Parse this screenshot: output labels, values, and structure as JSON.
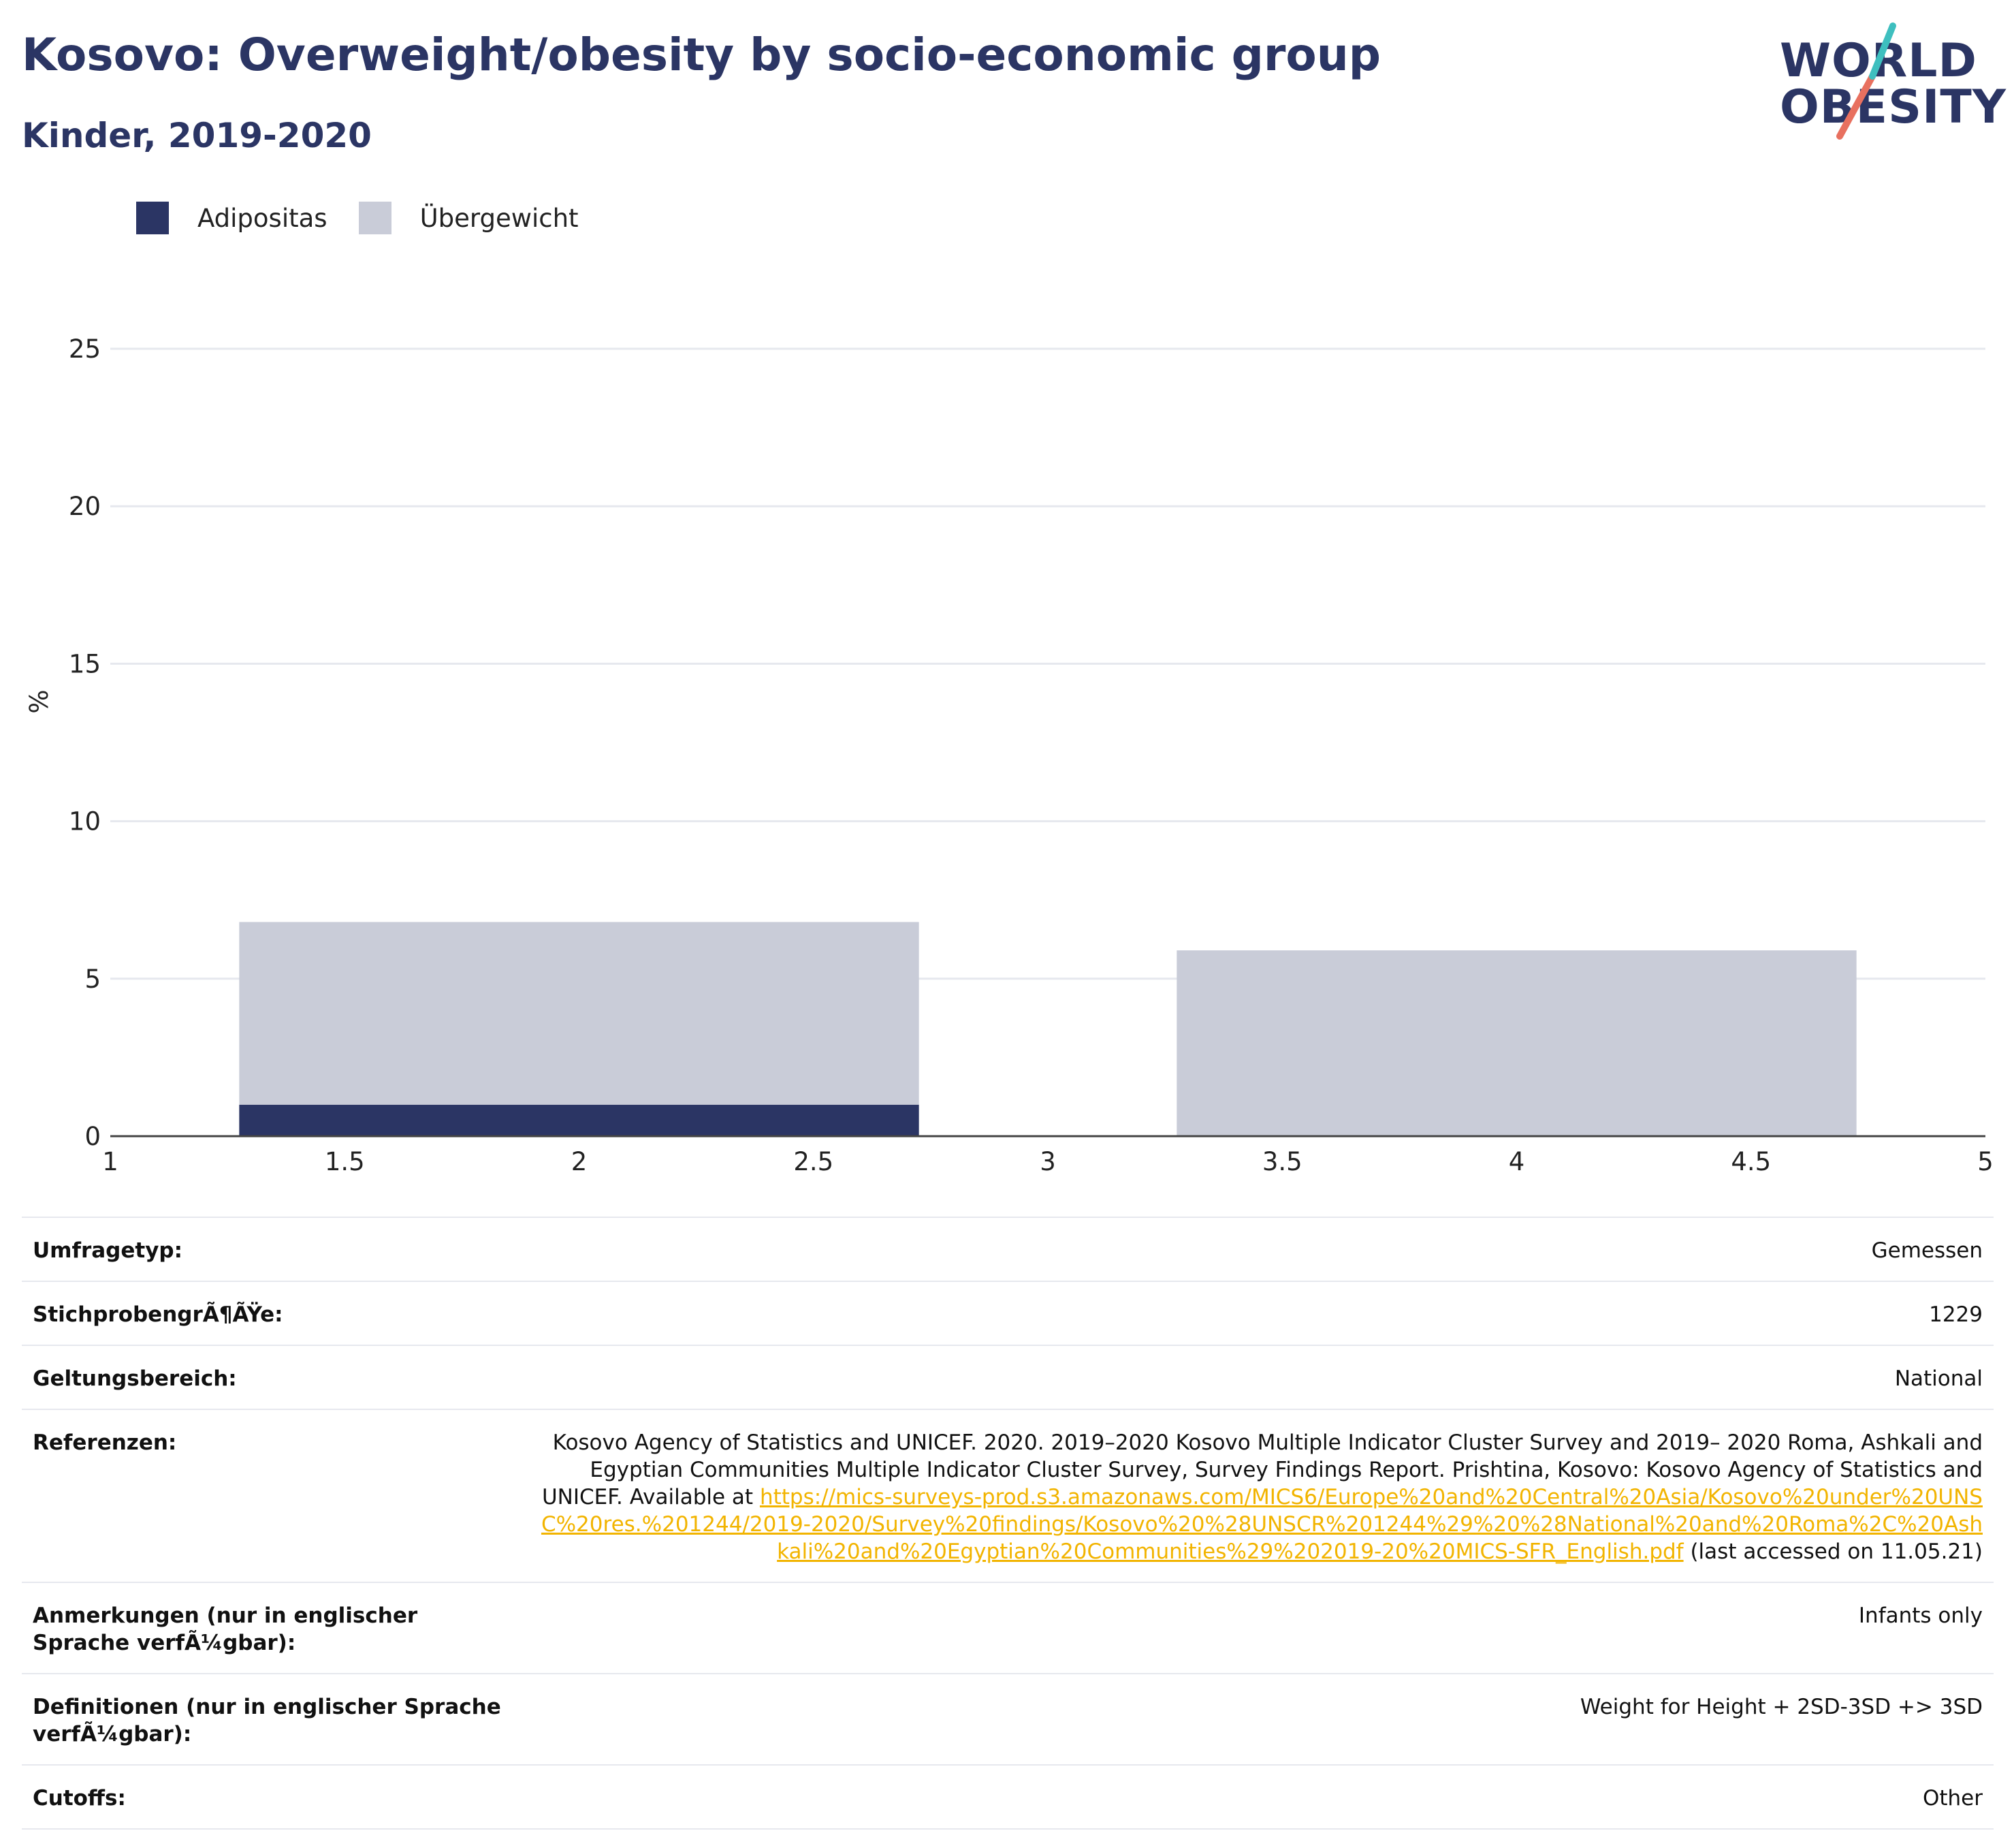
{
  "header": {
    "title": "Kosovo: Overweight/obesity by socio-economic group",
    "subtitle": "Kinder, 2019-2020",
    "logo_line1": "WORLD",
    "logo_line2": "OBESITY"
  },
  "colors": {
    "adipositas": "#2b3564",
    "uebergewicht": "#c9ccd8",
    "title": "#2b3564",
    "link": "#f2b400"
  },
  "chart_data": {
    "type": "bar",
    "stacked": true,
    "x_ticks": [
      "1",
      "1.5",
      "2",
      "2.5",
      "3",
      "3.5",
      "4",
      "4.5",
      "5"
    ],
    "xlim": [
      1,
      5
    ],
    "y_ticks": [
      "0",
      "5",
      "10",
      "15",
      "20",
      "25"
    ],
    "ylim": [
      0,
      25
    ],
    "ylabel": "%",
    "xlabel": "",
    "grid": true,
    "legend_position": "top-left",
    "bars": [
      {
        "x": 2,
        "width": 1.45,
        "values": {
          "Adipositas": 1.0,
          "Übergewicht": 5.8
        }
      },
      {
        "x": 4,
        "width": 1.45,
        "values": {
          "Adipositas": 0.0,
          "Übergewicht": 5.9
        }
      }
    ],
    "series": [
      {
        "name": "Adipositas",
        "color": "#2b3564"
      },
      {
        "name": "Übergewicht",
        "color": "#c9ccd8"
      }
    ]
  },
  "info": {
    "survey_type": {
      "label": "Umfragetyp:",
      "value": "Gemessen"
    },
    "sample_size": {
      "label": "StichprobengrÃ¶ÃŸe:",
      "value": "1229"
    },
    "coverage": {
      "label": "Geltungsbereich:",
      "value": "National"
    },
    "references": {
      "label": "Referenzen:",
      "text_before": "Kosovo Agency of Statistics and UNICEF. 2020. 2019–2020 Kosovo Multiple Indicator Cluster Survey and 2019– 2020 Roma, Ashkali and Egyptian Communities Multiple Indicator Cluster Survey, Survey Findings Report. Prishtina, Kosovo: Kosovo Agency of Statistics and UNICEF. Available at ",
      "link": "https://mics-surveys-prod.s3.amazonaws.com/MICS6/Europe%20and%20Central%20Asia/Kosovo%20under%20UNSC%20res.%201244/2019-2020/Survey%20findings/Kosovo%20%28UNSCR%201244%29%20%28National%20and%20Roma%2C%20Ashkali%20and%20Egyptian%20Communities%29%202019-20%20MICS-SFR_English.pdf",
      "text_after": " (last accessed on 11.05.21)"
    },
    "notes": {
      "label": "Anmerkungen (nur in englischer Sprache verfÃ¼gbar):",
      "value": "Infants only"
    },
    "definitions": {
      "label": "Definitionen (nur in englischer Sprache verfÃ¼gbar):",
      "value": "Weight for Height + 2SD-3SD +> 3SD"
    },
    "cutoffs": {
      "label": "Cutoffs:",
      "value": "Other"
    }
  }
}
